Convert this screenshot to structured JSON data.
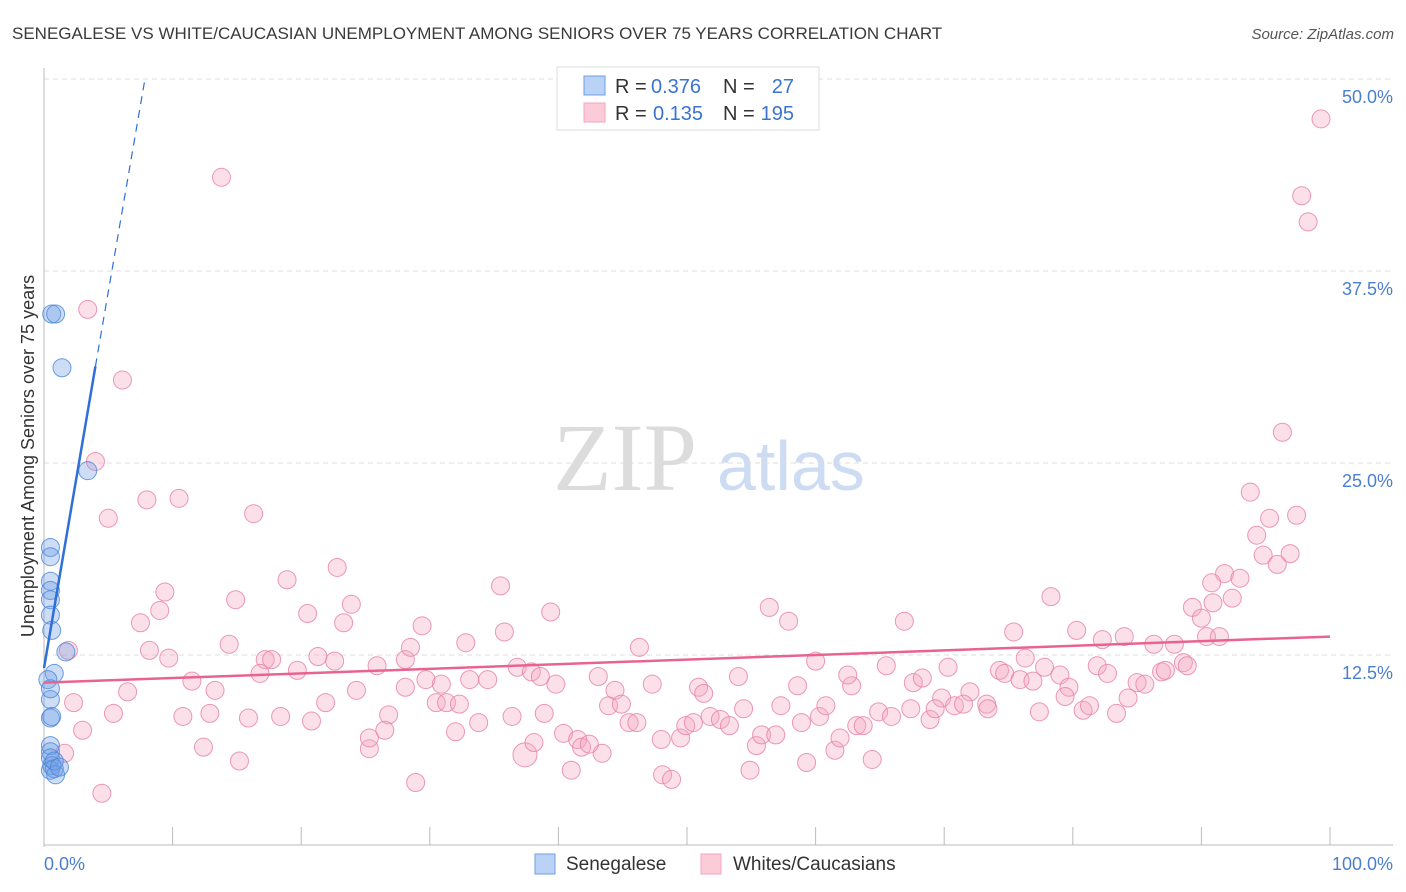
{
  "chart_data": {
    "type": "scatter",
    "title": "SENEGALESE VS WHITE/CAUCASIAN UNEMPLOYMENT AMONG SENIORS OVER 75 YEARS CORRELATION CHART",
    "source": "Source: ZipAtlas.com",
    "xlabel": "",
    "ylabel": "Unemployment Among Seniors over 75 years",
    "xlim": [
      0,
      100
    ],
    "ylim": [
      0,
      50
    ],
    "x_tick_labels": [
      "0.0%",
      "100.0%"
    ],
    "y_ticks": [
      12.5,
      25.0,
      37.5,
      50.0
    ],
    "y_tick_labels": [
      "12.5%",
      "25.0%",
      "37.5%",
      "50.0%"
    ],
    "grid": true,
    "watermark": "ZIPatlas",
    "legend": {
      "placement": "top-center",
      "rows": [
        {
          "r_label": "R =",
          "r": "0.376",
          "n_label": "N =",
          "n": "27"
        },
        {
          "r_label": "R =",
          "r": "0.135",
          "n_label": "N =",
          "n": "195"
        }
      ]
    },
    "series": [
      {
        "name": "Senegalese",
        "color": "#6f9fe6",
        "stroke": "#4a86d8",
        "trend": {
          "x": [
            0,
            4.0
          ],
          "y": [
            11.65,
            31.3
          ],
          "dashed_to": [
            7.85,
            50
          ]
        },
        "points": [
          [
            0.6,
            34.7
          ],
          [
            0.9,
            34.7
          ],
          [
            1.4,
            31.2
          ],
          [
            3.4,
            24.5
          ],
          [
            0.5,
            19.5
          ],
          [
            0.5,
            18.9
          ],
          [
            0.5,
            17.3
          ],
          [
            0.5,
            16.7
          ],
          [
            0.5,
            16.1
          ],
          [
            0.5,
            15.1
          ],
          [
            0.6,
            14.1
          ],
          [
            0.8,
            11.3
          ],
          [
            1.7,
            12.7
          ],
          [
            0.5,
            9.6
          ],
          [
            0.5,
            8.4
          ],
          [
            0.6,
            8.5
          ],
          [
            0.5,
            6.6
          ],
          [
            0.5,
            6.2
          ],
          [
            0.5,
            5.8
          ],
          [
            0.6,
            5.3
          ],
          [
            0.5,
            5.0
          ],
          [
            0.8,
            5.1
          ],
          [
            0.9,
            4.7
          ],
          [
            0.8,
            5.6
          ],
          [
            0.3,
            10.9
          ],
          [
            0.5,
            10.3
          ],
          [
            1.2,
            5.2
          ]
        ]
      },
      {
        "name": "Whites/Caucasians",
        "color": "#f4a6c0",
        "stroke": "#e77fa3",
        "trend": {
          "x": [
            0,
            100
          ],
          "y": [
            10.7,
            13.7
          ]
        },
        "points": [
          [
            13.8,
            43.6
          ],
          [
            99.3,
            47.4
          ],
          [
            97.8,
            42.4
          ],
          [
            98.3,
            40.7
          ],
          [
            3.4,
            35.0
          ],
          [
            6.1,
            30.4
          ],
          [
            4.0,
            25.1
          ],
          [
            96.3,
            27.0
          ],
          [
            8.0,
            22.6
          ],
          [
            10.5,
            22.7
          ],
          [
            5.0,
            21.4
          ],
          [
            16.3,
            21.7
          ],
          [
            93.8,
            23.1
          ],
          [
            97.4,
            21.6
          ],
          [
            95.3,
            21.4
          ],
          [
            94.3,
            20.3
          ],
          [
            96.9,
            19.1
          ],
          [
            94.8,
            19.0
          ],
          [
            95.9,
            18.4
          ],
          [
            91.8,
            17.8
          ],
          [
            93.0,
            17.5
          ],
          [
            90.8,
            17.2
          ],
          [
            92.4,
            16.2
          ],
          [
            89.3,
            15.6
          ],
          [
            90.0,
            14.9
          ],
          [
            90.9,
            15.9
          ],
          [
            35.5,
            17.0
          ],
          [
            22.8,
            18.2
          ],
          [
            18.9,
            17.4
          ],
          [
            9.4,
            16.6
          ],
          [
            14.9,
            16.1
          ],
          [
            9.0,
            15.4
          ],
          [
            23.9,
            15.8
          ],
          [
            20.5,
            15.2
          ],
          [
            39.4,
            15.3
          ],
          [
            56.4,
            15.6
          ],
          [
            57.9,
            14.7
          ],
          [
            66.9,
            14.7
          ],
          [
            78.3,
            16.3
          ],
          [
            75.4,
            14.0
          ],
          [
            80.3,
            14.1
          ],
          [
            82.3,
            13.5
          ],
          [
            84.0,
            13.7
          ],
          [
            86.3,
            13.2
          ],
          [
            87.9,
            13.2
          ],
          [
            90.4,
            13.7
          ],
          [
            91.4,
            13.7
          ],
          [
            7.5,
            14.6
          ],
          [
            14.4,
            13.2
          ],
          [
            23.3,
            14.6
          ],
          [
            29.4,
            14.4
          ],
          [
            32.8,
            13.3
          ],
          [
            35.8,
            14.0
          ],
          [
            46.3,
            13.0
          ],
          [
            8.2,
            12.8
          ],
          [
            1.9,
            12.8
          ],
          [
            9.7,
            12.3
          ],
          [
            11.5,
            10.8
          ],
          [
            13.3,
            10.2
          ],
          [
            6.5,
            10.1
          ],
          [
            2.3,
            9.4
          ],
          [
            5.4,
            8.7
          ],
          [
            3.0,
            7.6
          ],
          [
            10.8,
            8.5
          ],
          [
            12.9,
            8.7
          ],
          [
            15.9,
            8.4
          ],
          [
            18.4,
            8.5
          ],
          [
            20.8,
            8.2
          ],
          [
            12.4,
            6.5
          ],
          [
            15.2,
            5.6
          ],
          [
            1.6,
            6.1
          ],
          [
            4.5,
            3.5
          ],
          [
            17.2,
            12.2
          ],
          [
            17.7,
            12.2
          ],
          [
            19.7,
            11.5
          ],
          [
            16.8,
            11.3
          ],
          [
            21.3,
            12.4
          ],
          [
            22.6,
            12.1
          ],
          [
            25.9,
            11.8
          ],
          [
            28.1,
            12.2
          ],
          [
            28.5,
            13.0
          ],
          [
            28.1,
            10.4
          ],
          [
            24.3,
            10.2
          ],
          [
            21.9,
            9.4
          ],
          [
            26.8,
            8.6
          ],
          [
            26.5,
            7.6
          ],
          [
            25.3,
            6.4
          ],
          [
            29.7,
            10.9
          ],
          [
            30.9,
            10.6
          ],
          [
            33.1,
            10.9
          ],
          [
            34.5,
            10.9
          ],
          [
            36.8,
            11.7
          ],
          [
            37.9,
            11.4
          ],
          [
            38.6,
            11.1
          ],
          [
            39.8,
            10.6
          ],
          [
            43.1,
            11.1
          ],
          [
            44.4,
            10.2
          ],
          [
            47.3,
            10.6
          ],
          [
            50.9,
            10.4
          ],
          [
            51.3,
            10.0
          ],
          [
            54.0,
            11.1
          ],
          [
            58.6,
            10.5
          ],
          [
            60.0,
            12.1
          ],
          [
            62.8,
            10.5
          ],
          [
            62.5,
            11.2
          ],
          [
            65.5,
            11.8
          ],
          [
            67.6,
            10.7
          ],
          [
            68.3,
            11.0
          ],
          [
            70.3,
            11.7
          ],
          [
            69.8,
            9.7
          ],
          [
            72.0,
            10.1
          ],
          [
            74.3,
            11.5
          ],
          [
            74.7,
            11.3
          ],
          [
            75.9,
            10.9
          ],
          [
            76.3,
            12.3
          ],
          [
            76.9,
            10.8
          ],
          [
            77.8,
            11.7
          ],
          [
            79.0,
            11.2
          ],
          [
            79.7,
            10.4
          ],
          [
            81.9,
            11.8
          ],
          [
            82.7,
            11.3
          ],
          [
            84.3,
            9.7
          ],
          [
            85.0,
            10.7
          ],
          [
            85.6,
            10.6
          ],
          [
            86.9,
            11.4
          ],
          [
            87.2,
            11.5
          ],
          [
            88.6,
            12.0
          ],
          [
            88.9,
            11.8
          ],
          [
            30.5,
            9.4
          ],
          [
            31.3,
            9.4
          ],
          [
            32.3,
            9.3
          ],
          [
            33.8,
            8.1
          ],
          [
            32.0,
            7.5
          ],
          [
            36.4,
            8.5
          ],
          [
            38.9,
            8.7
          ],
          [
            40.4,
            7.4
          ],
          [
            41.5,
            7.0
          ],
          [
            43.9,
            9.2
          ],
          [
            44.9,
            9.3
          ],
          [
            45.5,
            8.1
          ],
          [
            46.1,
            8.1
          ],
          [
            49.5,
            7.1
          ],
          [
            49.9,
            7.9
          ],
          [
            50.5,
            8.1
          ],
          [
            51.8,
            8.5
          ],
          [
            52.6,
            8.3
          ],
          [
            53.3,
            7.9
          ],
          [
            54.4,
            9.0
          ],
          [
            57.3,
            9.2
          ],
          [
            58.9,
            8.1
          ],
          [
            60.3,
            8.5
          ],
          [
            60.8,
            9.2
          ],
          [
            63.2,
            7.9
          ],
          [
            63.7,
            7.9
          ],
          [
            64.9,
            8.8
          ],
          [
            65.9,
            8.5
          ],
          [
            67.4,
            9.0
          ],
          [
            68.9,
            8.3
          ],
          [
            69.3,
            9.0
          ],
          [
            70.8,
            9.2
          ],
          [
            71.5,
            9.3
          ],
          [
            73.3,
            9.3
          ],
          [
            73.4,
            9.0
          ],
          [
            77.4,
            8.8
          ],
          [
            79.4,
            9.8
          ],
          [
            80.8,
            8.9
          ],
          [
            81.3,
            9.2
          ],
          [
            83.4,
            8.7
          ],
          [
            25.3,
            7.1
          ],
          [
            28.9,
            4.2
          ],
          [
            37.4,
            6.0
          ],
          [
            41.0,
            5.0
          ],
          [
            41.8,
            6.5
          ],
          [
            43.4,
            6.1
          ],
          [
            48.1,
            4.7
          ],
          [
            48.8,
            4.4
          ],
          [
            48.0,
            7.0
          ],
          [
            54.9,
            5.0
          ],
          [
            55.4,
            6.6
          ],
          [
            55.8,
            7.3
          ],
          [
            56.9,
            7.3
          ],
          [
            59.3,
            5.5
          ],
          [
            61.5,
            6.3
          ],
          [
            61.9,
            7.1
          ],
          [
            64.4,
            5.7
          ],
          [
            42.4,
            6.7
          ],
          [
            38.1,
            6.8
          ]
        ]
      }
    ]
  }
}
